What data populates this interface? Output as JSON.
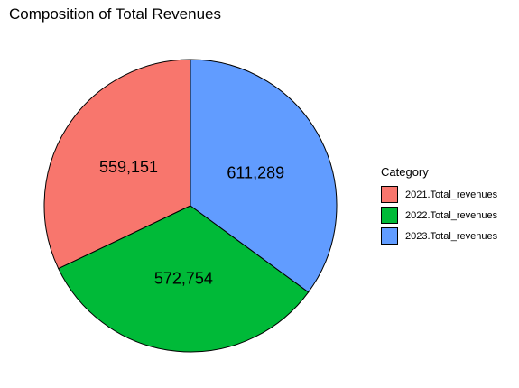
{
  "chart_data": {
    "type": "pie",
    "title": "Composition of Total Revenues",
    "legend_title": "Category",
    "legend_position": "right",
    "categories": [
      "2021.Total_revenues",
      "2022.Total_revenues",
      "2023.Total_revenues"
    ],
    "values": [
      559151,
      572754,
      611289
    ],
    "value_labels": [
      "559,151",
      "572,754",
      "611,289"
    ],
    "colors": [
      "#F8766D",
      "#00BA38",
      "#619CFF"
    ],
    "start_angle": "12 o'clock",
    "direction": "counterclockwise"
  }
}
